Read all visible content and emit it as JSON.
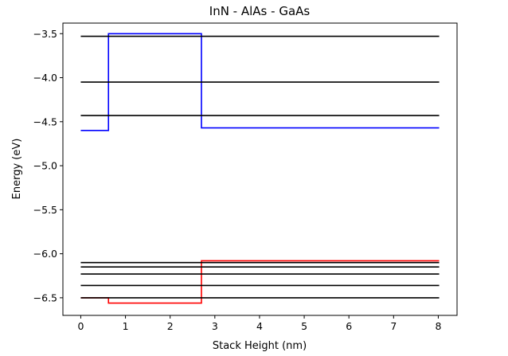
{
  "chart_data": {
    "type": "line",
    "title": "InN - AlAs - GaAs",
    "xlabel": "Stack Height (nm)",
    "ylabel": "Energy (eV)",
    "xlim": [
      -0.4,
      8.42
    ],
    "ylim": [
      -6.7,
      -3.38
    ],
    "xticks": [
      0,
      1,
      2,
      3,
      4,
      5,
      6,
      7,
      8
    ],
    "yticks": [
      -3.5,
      -4.0,
      -4.5,
      -5.0,
      -5.5,
      -6.0,
      -6.5
    ],
    "ytick_labels": [
      "−3.5",
      "−4.0",
      "−4.5",
      "−5.0",
      "−5.5",
      "−6.0",
      "−6.5"
    ],
    "grid": false,
    "series": [
      {
        "color": "#0000ff",
        "x": [
          0,
          0.62,
          0.62,
          2.7,
          2.7,
          8.02
        ],
        "y": [
          -4.6,
          -4.6,
          -3.5,
          -3.5,
          -4.57,
          -4.57
        ]
      },
      {
        "color": "#ff0000",
        "x": [
          0,
          0.62,
          0.62,
          2.7,
          2.7,
          8.02
        ],
        "y": [
          -6.5,
          -6.5,
          -6.56,
          -6.56,
          -6.08,
          -6.08
        ]
      },
      {
        "color": "#000000",
        "x": [
          0,
          8.02
        ],
        "y": [
          -3.53,
          -3.53
        ]
      },
      {
        "color": "#000000",
        "x": [
          0,
          8.02
        ],
        "y": [
          -4.05,
          -4.05
        ]
      },
      {
        "color": "#000000",
        "x": [
          0,
          8.02
        ],
        "y": [
          -4.43,
          -4.43
        ]
      },
      {
        "color": "#000000",
        "x": [
          0,
          8.02
        ],
        "y": [
          -6.1,
          -6.1
        ]
      },
      {
        "color": "#000000",
        "x": [
          0,
          8.02
        ],
        "y": [
          -6.15,
          -6.15
        ]
      },
      {
        "color": "#000000",
        "x": [
          0,
          8.02
        ],
        "y": [
          -6.23,
          -6.23
        ]
      },
      {
        "color": "#000000",
        "x": [
          0,
          8.02
        ],
        "y": [
          -6.36,
          -6.36
        ]
      },
      {
        "color": "#000000",
        "x": [
          0,
          8.02
        ],
        "y": [
          -6.5,
          -6.5
        ]
      }
    ]
  }
}
